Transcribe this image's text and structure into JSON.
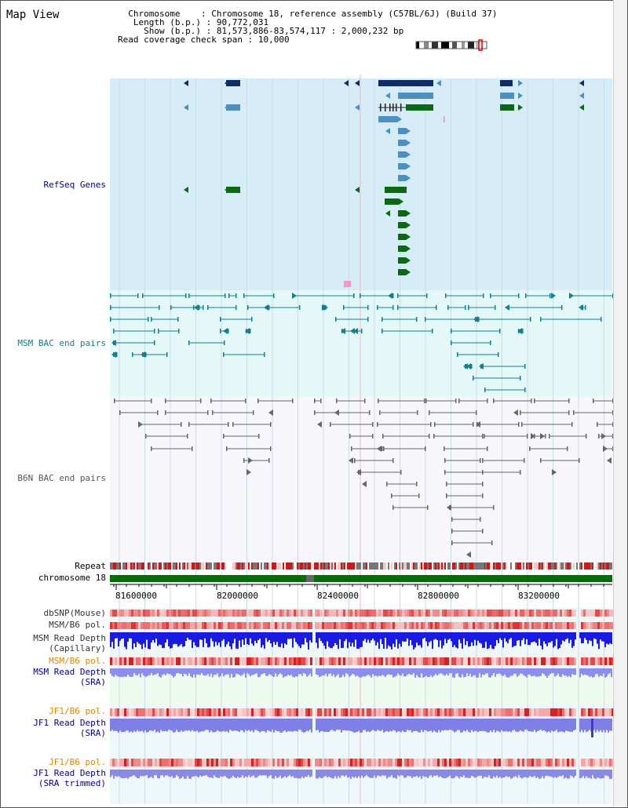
{
  "title": "Map View",
  "info": {
    "chromosome_key": "Chromosome",
    "chromosome_val": "Chromosome 18, reference assembly (C57BL/6J) (Build 37)",
    "length_key": "Length (b.p.)",
    "length_val": "90,772,031",
    "show_key": "Show (b.p.)",
    "show_val": "81,573,886-83,574,117 : 2,000,232 bp",
    "coverage_key": "Read coverage check span",
    "coverage_val": "10,000"
  },
  "tracks": {
    "refseq": "RefSeq Genes",
    "msm_bac": "MSM BAC end pairs",
    "b6n_bac": "B6N BAC end pairs",
    "repeat": "Repeat",
    "chromosome": "chromosome 18",
    "dbsnp": "dbSNP(Mouse)",
    "msm_b6_pol": "MSM/B6 pol.",
    "msm_depth_cap_1": "MSM Read Depth",
    "msm_depth_cap_2": "(Capillary)",
    "msm_b6_pol2": "MSM/B6 pol.",
    "msm_depth_sra_1": "MSM Read Depth",
    "msm_depth_sra_2": "(SRA)",
    "jf1_b6_pol": "JF1/B6 pol.",
    "jf1_depth_sra_1": "JF1 Read Depth",
    "jf1_depth_sra_2": "(SRA)",
    "jf1_b6_pol2": "JF1/B6 pol.",
    "jf1_depth_trim_1": "JF1 Read Depth",
    "jf1_depth_trim_2": "(SRA trimmed)"
  },
  "ruler": [
    "81600000",
    "82000000",
    "82400000",
    "82800000",
    "83200000"
  ],
  "colors": {
    "gene_blue": "#0d2d6b",
    "gene_mid": "#4a90c0",
    "gene_green": "#0a6a12",
    "bac_teal": "#137e8e",
    "bac_gray": "#666666",
    "label_blue": "#000099",
    "label_orange": "#e08a00"
  }
}
